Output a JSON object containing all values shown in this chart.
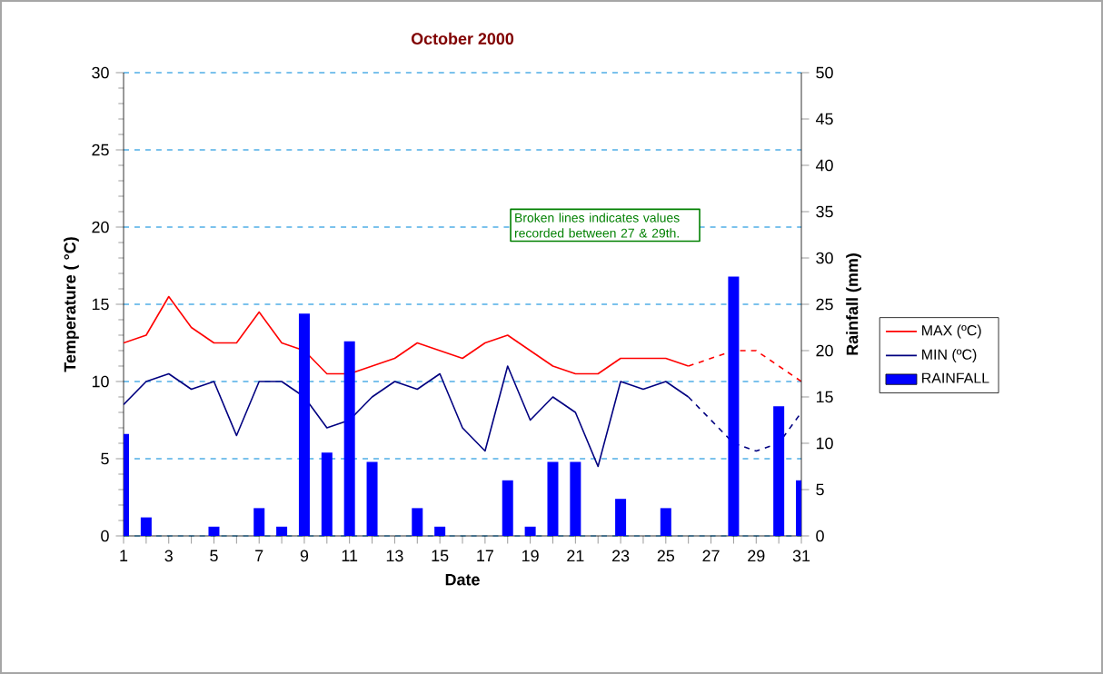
{
  "chart_data": {
    "type": "line",
    "title": "October 2000",
    "xlabel": "Date",
    "ylabel": "Temperature ( °C)",
    "y2label": "Rainfall (mm)",
    "x": [
      1,
      2,
      3,
      4,
      5,
      6,
      7,
      8,
      9,
      10,
      11,
      12,
      13,
      14,
      15,
      16,
      17,
      18,
      19,
      20,
      21,
      22,
      23,
      24,
      25,
      26,
      27,
      28,
      29,
      30,
      31
    ],
    "series": [
      {
        "name": "MAX (ºC)",
        "color": "#ff0000",
        "line_style": "solid",
        "values": [
          12.5,
          13,
          15.5,
          13.5,
          12.5,
          12.5,
          14.5,
          12.5,
          12,
          10.5,
          10.5,
          11,
          11.5,
          12.5,
          12,
          11.5,
          12.5,
          13,
          12,
          11,
          10.5,
          10.5,
          11.5,
          11.5,
          11.5,
          11,
          null,
          null,
          null,
          null,
          null
        ]
      },
      {
        "color": "#ff0000",
        "line_style": "dashed",
        "values": [
          null,
          null,
          null,
          null,
          null,
          null,
          null,
          null,
          null,
          null,
          null,
          null,
          null,
          null,
          null,
          null,
          null,
          null,
          null,
          null,
          null,
          null,
          null,
          null,
          null,
          11,
          11.5,
          12,
          12,
          11,
          10
        ]
      },
      {
        "name": "MIN (ºC)",
        "color": "#000080",
        "line_style": "solid",
        "values": [
          8.5,
          10,
          10.5,
          9.5,
          10,
          6.5,
          10,
          10,
          9,
          7,
          7.5,
          9,
          10,
          9.5,
          10.5,
          7,
          5.5,
          11,
          7.5,
          9,
          8,
          4.5,
          10,
          9.5,
          10,
          9,
          null,
          null,
          null,
          null,
          null
        ]
      },
      {
        "color": "#000080",
        "line_style": "dashed",
        "values": [
          null,
          null,
          null,
          null,
          null,
          null,
          null,
          null,
          null,
          null,
          null,
          null,
          null,
          null,
          null,
          null,
          null,
          null,
          null,
          null,
          null,
          null,
          null,
          null,
          null,
          9,
          7.5,
          6,
          5.5,
          6,
          8
        ]
      },
      {
        "name": "RAINFALL",
        "type": "bar",
        "axis": "y2",
        "color": "#0000ff",
        "values": [
          11,
          2,
          0,
          0,
          1,
          0,
          3,
          1,
          24,
          9,
          21,
          8,
          0,
          3,
          1,
          0,
          0,
          6,
          1,
          8,
          8,
          0,
          4,
          0,
          3,
          0,
          0,
          28,
          0,
          14,
          6
        ]
      }
    ],
    "xlim": [
      1,
      31
    ],
    "xticks": [
      1,
      {
        "value": 2,
        "label": null
      },
      3,
      {
        "value": 4,
        "label": null
      },
      5,
      {
        "value": 6,
        "label": null
      },
      7,
      {
        "value": 8,
        "label": null
      },
      9,
      {
        "value": 10,
        "label": null
      },
      11,
      {
        "value": 12,
        "label": null
      },
      13,
      {
        "value": 14,
        "label": null
      },
      15,
      {
        "value": 16,
        "label": null
      },
      17,
      {
        "value": 18,
        "label": null
      },
      19,
      {
        "value": 20,
        "label": null
      },
      21,
      {
        "value": 22,
        "label": null
      },
      23,
      {
        "value": 24,
        "label": null
      },
      25,
      {
        "value": 26,
        "label": null
      },
      27,
      {
        "value": 28,
        "label": null
      },
      29,
      {
        "value": 30,
        "label": null
      },
      31
    ],
    "ylim": [
      0,
      30
    ],
    "yticks": [
      0,
      5,
      10,
      15,
      20,
      25,
      30
    ],
    "y2lim": [
      0,
      50
    ],
    "y2ticks": [
      0,
      5,
      10,
      15,
      20,
      25,
      30,
      35,
      40,
      45,
      50
    ],
    "grid": "y",
    "legend": "right",
    "marker": "none",
    "annotations": [
      "Broken lines indicates values recorded between 27 & 29th."
    ]
  }
}
